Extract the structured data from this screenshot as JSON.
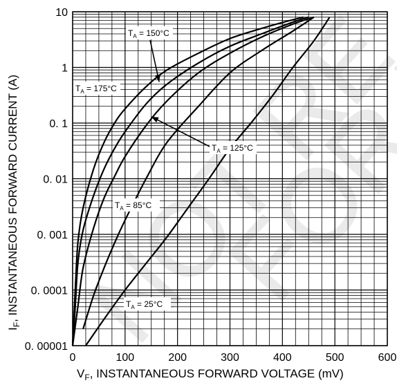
{
  "watermark": {
    "line1": "NOT RE",
    "line2": "FOR N"
  },
  "chart_data": {
    "type": "line",
    "xlabel": "V F, INSTANTANEOUS FORWARD VOLTAGE (mV)",
    "xlabel_main": "V",
    "xlabel_sub": "F",
    "xlabel_rest": ", INSTANTANEOUS FORWARD VOLTAGE (mV)",
    "ylabel_main": "I",
    "ylabel_sub": "F",
    "ylabel_rest": ", INSTANTANEOUS FORWARD CURRENT (A)",
    "xlim": [
      0,
      600
    ],
    "ylim": [
      1e-05,
      10
    ],
    "yscale": "log",
    "grid": true,
    "x_ticks": [
      "0",
      "100",
      "200",
      "300",
      "400",
      "500",
      "600"
    ],
    "x_tick_values": [
      0,
      100,
      200,
      300,
      400,
      500,
      600
    ],
    "y_ticks": [
      "0. 00001",
      "0. 0001",
      "0. 001",
      "0. 01",
      "0. 1",
      "1",
      "10"
    ],
    "y_tick_values": [
      1e-05,
      0.0001,
      0.001,
      0.01,
      0.1,
      1,
      10
    ],
    "series": [
      {
        "name": "175°C",
        "label_t": "T",
        "label_sub": "A",
        "label_val": " = 175°C",
        "x": [
          0,
          5,
          10,
          20,
          40,
          60,
          80,
          100,
          140,
          180,
          240,
          300,
          360,
          410,
          440
        ],
        "y": [
          1e-05,
          0.0001,
          0.0007,
          0.003,
          0.015,
          0.045,
          0.1,
          0.18,
          0.45,
          0.9,
          1.8,
          3.3,
          5.0,
          6.8,
          8.0
        ]
      },
      {
        "name": "150°C",
        "label_t": "T",
        "label_sub": "A",
        "label_val": " = 150°C",
        "x": [
          0,
          5,
          10,
          20,
          40,
          60,
          80,
          100,
          140,
          180,
          240,
          300,
          360,
          420,
          450
        ],
        "y": [
          1e-05,
          5e-05,
          0.0003,
          0.0012,
          0.005,
          0.015,
          0.035,
          0.07,
          0.22,
          0.5,
          1.2,
          2.4,
          4.0,
          6.5,
          8.0
        ]
      },
      {
        "name": "125°C",
        "label_t": "T",
        "label_sub": "A",
        "label_val": " = 125°C",
        "x": [
          0,
          10,
          20,
          40,
          60,
          80,
          100,
          140,
          180,
          240,
          300,
          360,
          420,
          460
        ],
        "y": [
          1e-05,
          5e-05,
          0.00025,
          0.0013,
          0.0045,
          0.011,
          0.025,
          0.09,
          0.25,
          0.8,
          1.8,
          3.5,
          6.0,
          8.0
        ]
      },
      {
        "name": "85°C",
        "label_t": "T",
        "label_sub": "A",
        "label_val": " = 85°C",
        "x": [
          20,
          40,
          60,
          80,
          100,
          140,
          180,
          240,
          300,
          360,
          420,
          460
        ],
        "y": [
          2e-05,
          8e-05,
          0.00025,
          0.0007,
          0.0018,
          0.01,
          0.045,
          0.2,
          0.8,
          2.0,
          4.5,
          8.0
        ]
      },
      {
        "name": "25°C",
        "label_t": "T",
        "label_sub": "A",
        "label_val": " = 25°C",
        "x": [
          25,
          60,
          100,
          140,
          180,
          220,
          260,
          300,
          340,
          380,
          420,
          460,
          490
        ],
        "y": [
          1e-05,
          3e-05,
          0.0001,
          0.0003,
          0.0009,
          0.003,
          0.01,
          0.035,
          0.1,
          0.3,
          1.0,
          3.0,
          8.0
        ]
      }
    ],
    "annotations": [
      {
        "series": "150°C",
        "arrow_to": [
          165,
          0.55
        ]
      },
      {
        "series": "175°C",
        "arrow_to": null
      },
      {
        "series": "125°C",
        "arrow_to": [
          150,
          0.13
        ]
      },
      {
        "series": "85°C",
        "arrow_to": null
      },
      {
        "series": "25°C",
        "arrow_to": null
      }
    ]
  }
}
